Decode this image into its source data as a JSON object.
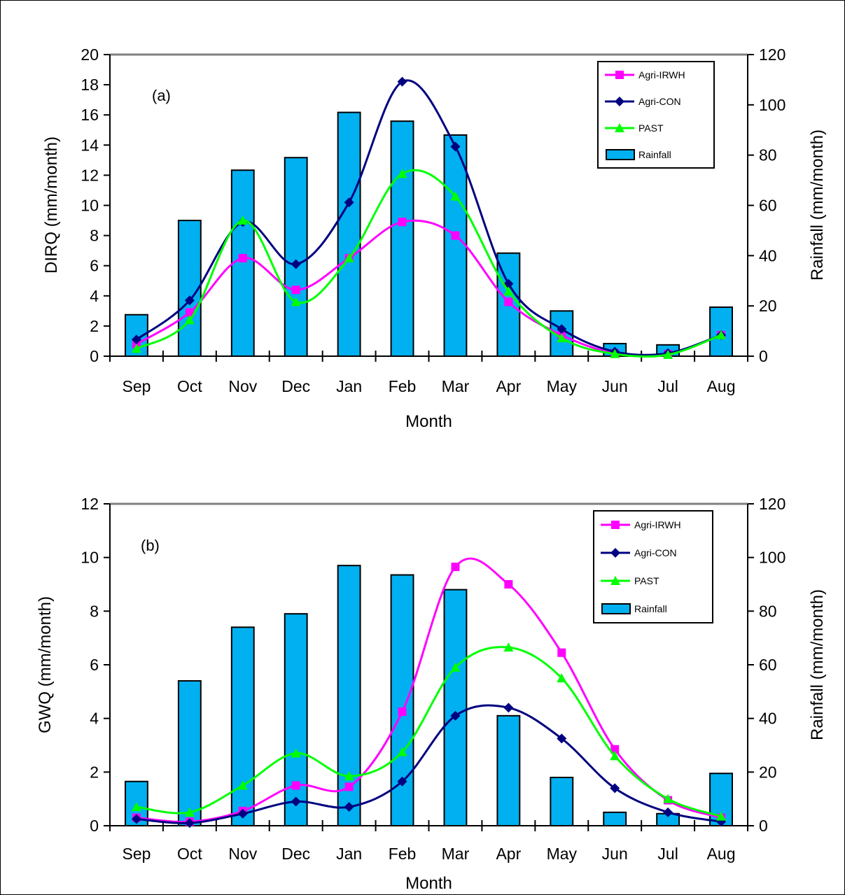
{
  "chart_data": [
    {
      "type": "bar+line",
      "panel_label": "(a)",
      "categories": [
        "Sep",
        "Oct",
        "Nov",
        "Dec",
        "Jan",
        "Feb",
        "Mar",
        "Apr",
        "May",
        "Jun",
        "Jul",
        "Aug"
      ],
      "xlabel": "Month",
      "ylabel": "DIRQ (mm/month)",
      "ylabel_right": "Rainfall (mm/month)",
      "ylim": [
        0,
        20
      ],
      "yticks": [
        "0",
        "2",
        "4",
        "6",
        "8",
        "10",
        "12",
        "14",
        "16",
        "18",
        "20"
      ],
      "ylim_right": [
        0,
        120
      ],
      "yticks_right": [
        "0",
        "20",
        "40",
        "60",
        "80",
        "100",
        "120"
      ],
      "legend_position": "top-right",
      "rainfall": {
        "name": "Rainfall",
        "color": "#00B0F0",
        "values": [
          16.5,
          54,
          74,
          79,
          97,
          93.5,
          88,
          41,
          18,
          5,
          4.5,
          19.5
        ]
      },
      "series": [
        {
          "name": "Agri-IRWH",
          "color": "#FF00FF",
          "marker": "square",
          "values": [
            0.8,
            2.9,
            6.5,
            4.4,
            6.5,
            8.9,
            8.0,
            3.6,
            1.4,
            0.2,
            0.15,
            1.4
          ]
        },
        {
          "name": "Agri-CON",
          "color": "#000080",
          "marker": "diamond",
          "values": [
            1.1,
            3.7,
            8.9,
            6.1,
            10.2,
            18.2,
            13.9,
            4.8,
            1.8,
            0.3,
            0.2,
            1.4
          ]
        },
        {
          "name": "PAST",
          "color": "#00FF00",
          "marker": "triangle",
          "values": [
            0.5,
            2.4,
            9.0,
            3.6,
            6.5,
            12.1,
            10.6,
            4.3,
            1.2,
            0.15,
            0.1,
            1.4
          ]
        }
      ]
    },
    {
      "type": "bar+line",
      "panel_label": "(b)",
      "categories": [
        "Sep",
        "Oct",
        "Nov",
        "Dec",
        "Jan",
        "Feb",
        "Mar",
        "Apr",
        "May",
        "Jun",
        "Jul",
        "Aug"
      ],
      "xlabel": "Month",
      "ylabel": "GWQ (mm/month)",
      "ylabel_right": "Rainfall (mm/month)",
      "ylim": [
        0,
        12
      ],
      "yticks": [
        "0",
        "2",
        "4",
        "6",
        "8",
        "10",
        "12"
      ],
      "ylim_right": [
        0,
        120
      ],
      "yticks_right": [
        "0",
        "20",
        "40",
        "60",
        "80",
        "100",
        "120"
      ],
      "legend_position": "top-right",
      "rainfall": {
        "name": "Rainfall",
        "color": "#00B0F0",
        "values": [
          16.5,
          54,
          74,
          79,
          97,
          93.5,
          88,
          41,
          18,
          5,
          4.5,
          19.5
        ]
      },
      "series": [
        {
          "name": "Agri-IRWH",
          "color": "#FF00FF",
          "marker": "square",
          "values": [
            0.3,
            0.15,
            0.55,
            1.5,
            1.45,
            4.25,
            9.65,
            9.0,
            6.45,
            2.85,
            0.95,
            0.3
          ]
        },
        {
          "name": "Agri-CON",
          "color": "#000080",
          "marker": "diamond",
          "values": [
            0.25,
            0.1,
            0.45,
            0.9,
            0.7,
            1.65,
            4.1,
            4.4,
            3.25,
            1.4,
            0.5,
            0.15
          ]
        },
        {
          "name": "PAST",
          "color": "#00FF00",
          "marker": "triangle",
          "values": [
            0.7,
            0.5,
            1.5,
            2.7,
            1.85,
            2.75,
            5.9,
            6.65,
            5.5,
            2.6,
            1.0,
            0.35
          ]
        }
      ]
    }
  ]
}
